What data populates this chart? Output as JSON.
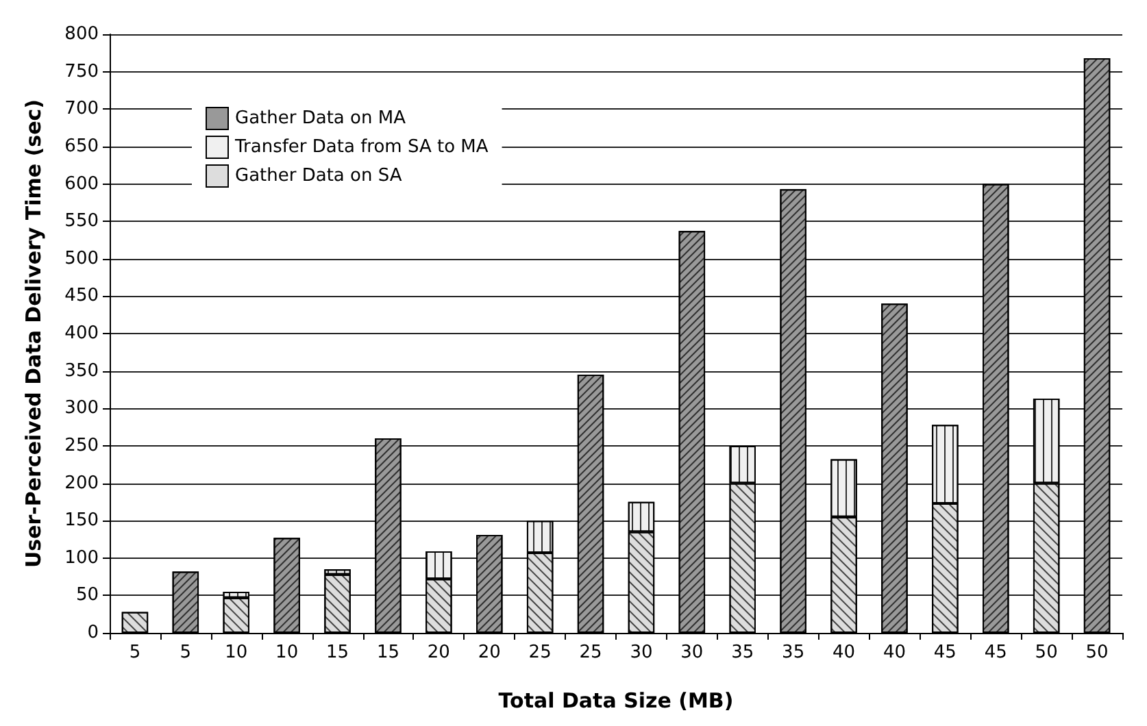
{
  "chart_data": {
    "type": "bar",
    "stacked": true,
    "xlabel": "Total Data Size (MB)",
    "ylabel": "User-Perceived Data Delivery Time (sec)",
    "categories": [
      "5",
      "5",
      "10",
      "10",
      "15",
      "15",
      "20",
      "20",
      "25",
      "25",
      "30",
      "30",
      "35",
      "35",
      "40",
      "40",
      "45",
      "45",
      "50",
      "50"
    ],
    "series": [
      {
        "name": "Gather Data on SA",
        "color": "#dddddd",
        "values": [
          28,
          null,
          47,
          null,
          78,
          null,
          72,
          null,
          107,
          null,
          135,
          null,
          200,
          null,
          155,
          null,
          173,
          null,
          200,
          null
        ]
      },
      {
        "name": "Transfer Data from SA to MA",
        "color": "#f0f0f0",
        "values": [
          null,
          null,
          8,
          null,
          7,
          null,
          37,
          null,
          43,
          null,
          40,
          null,
          50,
          null,
          77,
          null,
          105,
          null,
          113,
          null
        ]
      },
      {
        "name": "Gather Data on MA",
        "color": "#999999",
        "values": [
          null,
          82,
          null,
          127,
          null,
          260,
          null,
          131,
          null,
          345,
          null,
          537,
          null,
          593,
          null,
          440,
          null,
          600,
          null,
          768
        ]
      }
    ],
    "ylim": [
      0,
      800
    ],
    "yticks": [
      0,
      50,
      100,
      150,
      200,
      250,
      300,
      350,
      400,
      450,
      500,
      550,
      600,
      650,
      700,
      750,
      800
    ],
    "grid": "y",
    "legend": "top left"
  }
}
